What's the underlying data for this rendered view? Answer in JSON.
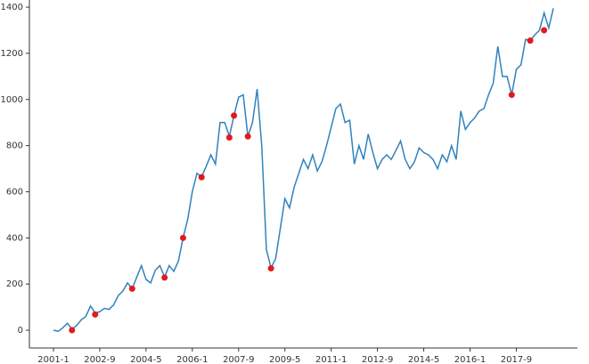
{
  "chart_data": {
    "type": "line",
    "categories": [
      "2001-1",
      null,
      null,
      null,
      null,
      null,
      null,
      null,
      null,
      null,
      "2002-9",
      null,
      null,
      null,
      null,
      null,
      null,
      null,
      null,
      null,
      "2004-5",
      null,
      null,
      null,
      null,
      null,
      null,
      null,
      null,
      null,
      "2006-1",
      null,
      null,
      null,
      null,
      null,
      null,
      null,
      null,
      null,
      "2007-9",
      null,
      null,
      null,
      null,
      null,
      null,
      null,
      null,
      null,
      "2009-5",
      null,
      null,
      null,
      null,
      null,
      null,
      null,
      null,
      null,
      "2011-1",
      null,
      null,
      null,
      null,
      null,
      null,
      null,
      null,
      null,
      "2012-9",
      null,
      null,
      null,
      null,
      null,
      null,
      null,
      null,
      null,
      "2014-5",
      null,
      null,
      null,
      null,
      null,
      null,
      null,
      null,
      null,
      "2016-1",
      null,
      null,
      null,
      null,
      null,
      null,
      null,
      null,
      null,
      "2017-9",
      null,
      null,
      null,
      null,
      null,
      null,
      null,
      null
    ],
    "series": [
      {
        "color": "#3182bd",
        "values": [
          0,
          -5,
          10,
          30,
          5,
          20,
          45,
          60,
          105,
          75,
          80,
          95,
          90,
          110,
          150,
          170,
          205,
          180,
          230,
          280,
          220,
          205,
          260,
          280,
          230,
          280,
          255,
          300,
          400,
          480,
          600,
          680,
          665,
          710,
          760,
          720,
          900,
          900,
          840,
          930,
          1010,
          1020,
          840,
          900,
          1045,
          800,
          350,
          270,
          310,
          440,
          570,
          530,
          620,
          680,
          740,
          700,
          760,
          690,
          730,
          800,
          880,
          960,
          980,
          900,
          910,
          720,
          800,
          740,
          850,
          770,
          700,
          740,
          760,
          740,
          780,
          820,
          740,
          700,
          730,
          790,
          770,
          760,
          740,
          700,
          760,
          730,
          800,
          740,
          950,
          870,
          900,
          920,
          950,
          960,
          1020,
          1070,
          1230,
          1100,
          1100,
          1020,
          1130,
          1150,
          1260,
          1255,
          1280,
          1300,
          1375,
          1310,
          1395
        ]
      },
      {
        "type": "scatter",
        "color": "#e31a1c",
        "values": [
          null,
          null,
          null,
          null,
          0,
          null,
          null,
          null,
          null,
          68,
          null,
          null,
          null,
          null,
          null,
          null,
          null,
          180,
          null,
          null,
          null,
          null,
          null,
          null,
          228,
          null,
          null,
          null,
          400,
          null,
          null,
          null,
          663,
          null,
          null,
          null,
          null,
          null,
          835,
          930,
          null,
          null,
          840,
          null,
          null,
          null,
          null,
          268,
          null,
          null,
          null,
          null,
          null,
          null,
          null,
          null,
          null,
          null,
          null,
          null,
          null,
          null,
          null,
          null,
          null,
          null,
          null,
          null,
          null,
          null,
          null,
          null,
          null,
          null,
          null,
          null,
          null,
          null,
          null,
          null,
          null,
          null,
          null,
          null,
          null,
          null,
          null,
          null,
          null,
          null,
          null,
          null,
          null,
          null,
          null,
          null,
          null,
          null,
          null,
          1020,
          null,
          null,
          null,
          1255,
          null,
          null,
          1300,
          null,
          null
        ]
      }
    ],
    "ylim": [
      -77,
      1431
    ],
    "yticks": [
      0,
      200,
      400,
      600,
      800,
      1000,
      1200,
      1400
    ],
    "grid": false
  }
}
